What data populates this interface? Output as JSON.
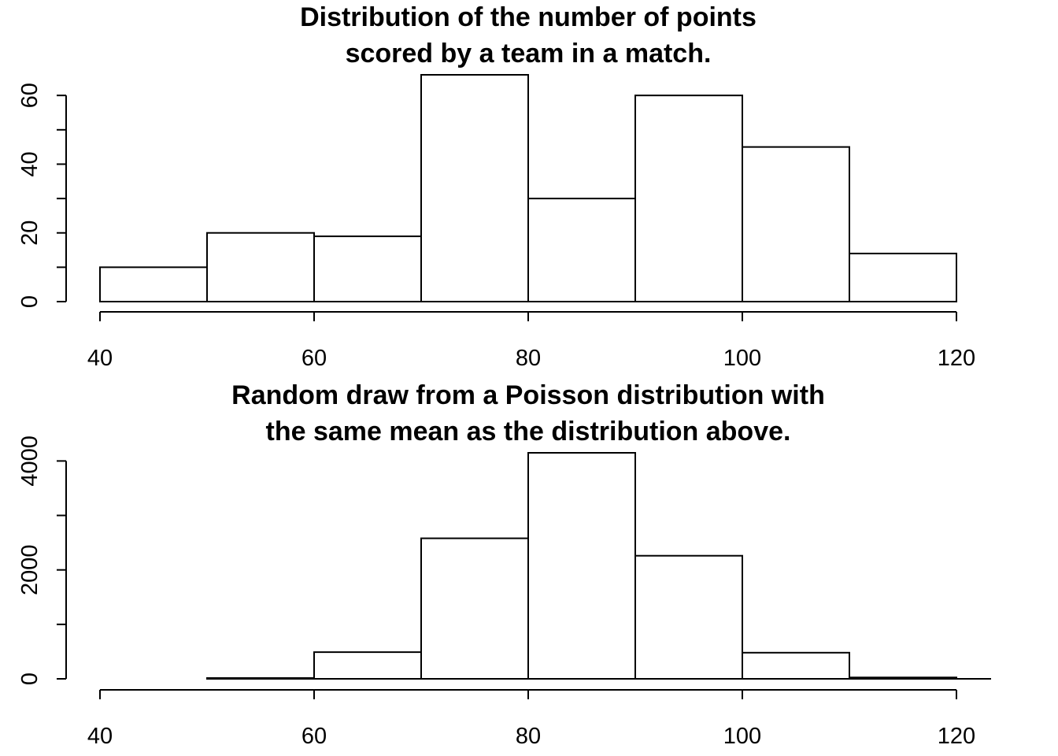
{
  "chart_data": [
    {
      "type": "bar",
      "title_lines": [
        "Distribution of the number of points",
        "scored by a team in a match."
      ],
      "xlabel": "",
      "ylabel": "",
      "bin_edges": [
        40,
        50,
        60,
        70,
        80,
        90,
        100,
        110,
        120
      ],
      "values": [
        10,
        20,
        19,
        66,
        30,
        60,
        45,
        14
      ],
      "x_ticks": [
        40,
        60,
        80,
        100,
        120
      ],
      "y_ticks": [
        0,
        20,
        40,
        60
      ],
      "y_minor_ticks": [
        10,
        30,
        50
      ],
      "xlim": [
        40,
        120
      ],
      "ylim": [
        0,
        66
      ],
      "grid": false
    },
    {
      "type": "bar",
      "title_lines": [
        "Random draw from a Poisson distribution with",
        "the same mean as the distribution above."
      ],
      "xlabel": "",
      "ylabel": "",
      "bin_edges": [
        40,
        50,
        60,
        70,
        80,
        90,
        100,
        110,
        120
      ],
      "values": [
        0,
        15,
        490,
        2580,
        4150,
        2260,
        480,
        25
      ],
      "x_ticks": [
        40,
        60,
        80,
        100,
        120
      ],
      "y_ticks": [
        0,
        2000,
        4000
      ],
      "y_minor_ticks": [
        1000,
        3000
      ],
      "xlim": [
        40,
        120
      ],
      "ylim": [
        0,
        4150
      ],
      "grid": false
    }
  ]
}
